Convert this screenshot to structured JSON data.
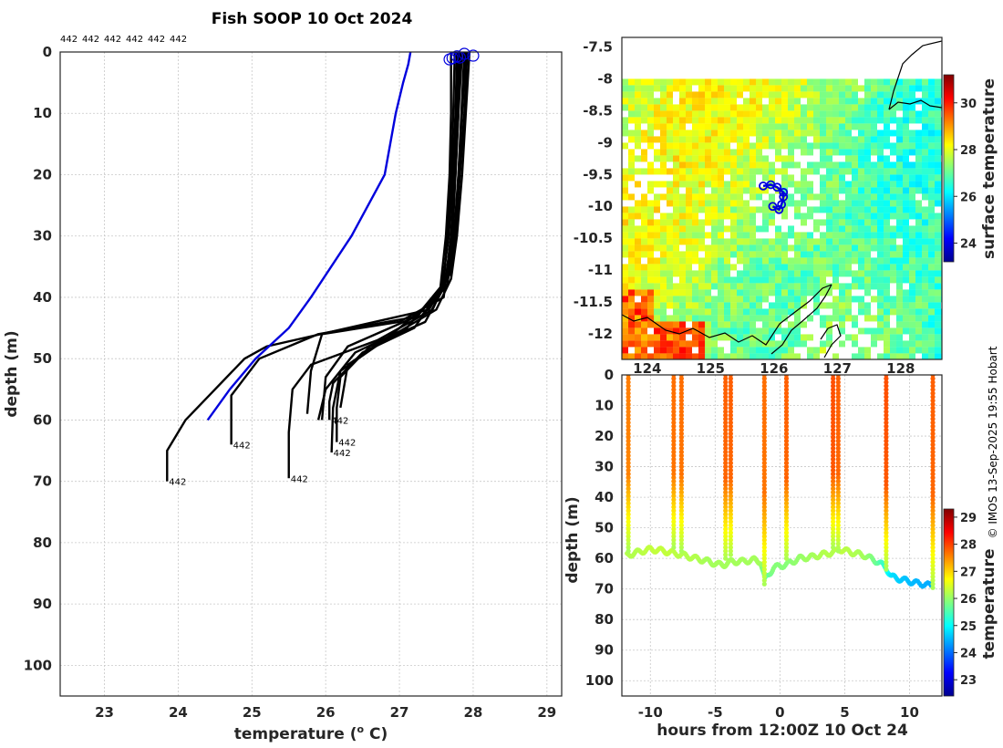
{
  "title": "Fish SOOP 10 Oct 2024",
  "credit": "© IMOS 13-Sep-2025 19:55 Hobart",
  "chart_data": [
    {
      "type": "line",
      "name": "temperature-profiles",
      "xlabel": "temperature (",
      "xlabel_sup": "o",
      "xlabel_end": " C)",
      "ylabel": "depth (m)",
      "xlim": [
        22.4,
        29.2
      ],
      "ylim": [
        0,
        105
      ],
      "y_reversed": true,
      "xticks": [
        "23",
        "24",
        "25",
        "26",
        "27",
        "28",
        "29"
      ],
      "yticks": [
        "0",
        "10",
        "20",
        "30",
        "40",
        "50",
        "60",
        "70",
        "80",
        "90",
        "100"
      ],
      "top_labels": [
        "442",
        "442",
        "442",
        "442",
        "442",
        "442"
      ],
      "end_labels": [
        {
          "text": "442",
          "x": 23.85,
          "y": 70
        },
        {
          "text": "442",
          "x": 24.72,
          "y": 64
        },
        {
          "text": "442",
          "x": 25.5,
          "y": 69.5
        },
        {
          "text": "442",
          "x": 26.08,
          "y": 65.3
        },
        {
          "text": "442",
          "x": 26.15,
          "y": 63.6
        },
        {
          "text": "442",
          "x": 26.05,
          "y": 60
        }
      ],
      "reference_profile": {
        "name": "climatology",
        "color": "#0000dd",
        "x": [
          27.15,
          27.12,
          27.05,
          26.95,
          26.8,
          26.35,
          25.8,
          25.5,
          25.05,
          24.7,
          24.4
        ],
        "y": [
          0,
          2,
          5,
          10,
          20,
          30,
          40,
          45,
          50,
          55,
          60
        ]
      },
      "series": [
        {
          "name": "profile-1",
          "x": [
            27.75,
            27.73,
            27.7,
            27.65,
            27.6,
            27.4,
            26.3,
            25.2,
            24.9,
            24.5,
            24.1,
            23.85,
            23.85
          ],
          "y": [
            0,
            10,
            20,
            30,
            38,
            42,
            45,
            48,
            50,
            55,
            60,
            65,
            70
          ]
        },
        {
          "name": "profile-2",
          "x": [
            27.82,
            27.8,
            27.76,
            27.72,
            27.65,
            27.3,
            25.9,
            25.1,
            24.72,
            24.72
          ],
          "y": [
            0,
            10,
            20,
            30,
            38,
            43,
            46,
            50,
            56,
            64
          ]
        },
        {
          "name": "profile-3",
          "x": [
            27.9,
            27.85,
            27.8,
            27.75,
            27.68,
            27.45,
            26.7,
            25.8,
            25.55,
            25.5,
            25.5
          ],
          "y": [
            0,
            10,
            20,
            30,
            36,
            42,
            47,
            51,
            55,
            62,
            69.5
          ]
        },
        {
          "name": "profile-4",
          "x": [
            27.95,
            27.9,
            27.85,
            27.78,
            27.7,
            27.5,
            26.8,
            26.2,
            26.1,
            26.08
          ],
          "y": [
            0,
            10,
            20,
            30,
            37,
            42,
            47,
            52,
            58,
            65.3
          ]
        },
        {
          "name": "profile-5",
          "x": [
            27.85,
            27.8,
            27.76,
            27.7,
            27.62,
            27.35,
            26.6,
            26.2,
            26.15,
            26.15
          ],
          "y": [
            0,
            10,
            20,
            30,
            38,
            44,
            48,
            53,
            58,
            63.6
          ]
        },
        {
          "name": "profile-6",
          "x": [
            27.7,
            27.7,
            27.68,
            27.63,
            27.55,
            27.2,
            26.5,
            26.1,
            26.05,
            26.05
          ],
          "y": [
            0,
            10,
            20,
            30,
            39,
            45,
            49,
            54,
            57,
            60
          ]
        },
        {
          "name": "profile-7",
          "x": [
            27.8,
            27.78,
            27.74,
            27.7,
            27.6,
            27.0,
            25.95,
            25.8,
            25.75
          ],
          "y": [
            0,
            10,
            20,
            30,
            40,
            44,
            46,
            52,
            59
          ]
        },
        {
          "name": "profile-8",
          "x": [
            27.88,
            27.84,
            27.8,
            27.74,
            27.66,
            27.25,
            26.3,
            26.0,
            25.95
          ],
          "y": [
            0,
            10,
            20,
            30,
            37,
            43,
            48,
            53,
            60
          ]
        },
        {
          "name": "profile-9",
          "x": [
            27.78,
            27.76,
            27.72,
            27.67,
            27.58,
            27.1,
            26.4,
            26.0,
            25.9
          ],
          "y": [
            0,
            10,
            20,
            30,
            38,
            45,
            49,
            55,
            60
          ]
        },
        {
          "name": "profile-10",
          "x": [
            27.92,
            27.88,
            27.82,
            27.76,
            27.7,
            27.4,
            26.9,
            26.3,
            26.2
          ],
          "y": [
            0,
            10,
            20,
            30,
            36,
            41,
            46,
            51,
            58
          ]
        }
      ],
      "surface_markers": [
        {
          "x": 27.68,
          "y": 1.2
        },
        {
          "x": 27.72,
          "y": 1.0
        },
        {
          "x": 27.78,
          "y": 0.7
        },
        {
          "x": 27.88,
          "y": 0.3
        },
        {
          "x": 28.0,
          "y": 0.6
        },
        {
          "x": 27.82,
          "y": 0.9
        }
      ]
    },
    {
      "type": "heatmap",
      "name": "surface-temperature-map",
      "xlim": [
        123.6,
        128.65
      ],
      "ylim": [
        -12.4,
        -7.35
      ],
      "xticks": [
        "124",
        "125",
        "126",
        "127",
        "128"
      ],
      "yticks": [
        "-7.5",
        "-8",
        "-8.5",
        "-9",
        "-9.5",
        "-10",
        "-10.5",
        "-11",
        "-11.5",
        "-12"
      ],
      "colorbar_label": "surface temperature",
      "colorbar_range": [
        23.2,
        31.2
      ],
      "colorbar_ticks": [
        "24",
        "26",
        "28",
        "30"
      ],
      "track": {
        "lon": [
          125.83,
          125.95,
          126.05,
          126.15,
          126.15,
          126.12,
          126.08,
          125.98
        ],
        "lat": [
          -9.68,
          -9.66,
          -9.7,
          -9.78,
          -9.85,
          -9.97,
          -10.05,
          -10.0
        ]
      }
    },
    {
      "type": "scatter",
      "name": "depth-time-section",
      "xlabel": "hours from 12:00Z 10 Oct 24",
      "ylabel": "depth (m)",
      "xlim": [
        -12.2,
        12.5
      ],
      "ylim": [
        0,
        105
      ],
      "y_reversed": true,
      "xticks": [
        "-10",
        "-5",
        "0",
        "5",
        "10"
      ],
      "yticks": [
        "0",
        "10",
        "20",
        "30",
        "40",
        "50",
        "60",
        "70",
        "80",
        "90",
        "100"
      ],
      "colorbar_label": "temperature",
      "colorbar_range": [
        22.4,
        29.3
      ],
      "colorbar_ticks": [
        "23",
        "24",
        "25",
        "26",
        "27",
        "28",
        "29"
      ],
      "casts": [
        {
          "hour": -11.7,
          "bottom": 58,
          "surf_temp": 27.6
        },
        {
          "hour": -8.2,
          "bottom": 57,
          "surf_temp": 27.7
        },
        {
          "hour": -7.6,
          "bottom": 58,
          "surf_temp": 27.7
        },
        {
          "hour": -4.2,
          "bottom": 61,
          "surf_temp": 27.8
        },
        {
          "hour": -3.8,
          "bottom": 60,
          "surf_temp": 27.8
        },
        {
          "hour": -1.2,
          "bottom": 69,
          "surf_temp": 27.7
        },
        {
          "hour": 0.5,
          "bottom": 61,
          "surf_temp": 27.8
        },
        {
          "hour": 4.1,
          "bottom": 57,
          "surf_temp": 27.9
        },
        {
          "hour": 4.5,
          "bottom": 58,
          "surf_temp": 27.8
        },
        {
          "hour": 8.2,
          "bottom": 64,
          "surf_temp": 27.9
        },
        {
          "hour": 11.8,
          "bottom": 70,
          "surf_temp": 27.8
        }
      ],
      "bottom_track": {
        "hour": [
          -11.8,
          -11,
          -10,
          -9,
          -8.5,
          -7.4,
          -6.5,
          -5.5,
          -4.8,
          -4.3,
          -3.7,
          -3,
          -2,
          -1.5,
          -1.15,
          -0.5,
          0.5,
          1.5,
          2.5,
          3.5,
          4.2,
          4.6,
          5.5,
          6.5,
          7.5,
          8.2,
          8.6,
          9.5,
          10.5,
          11.8
        ],
        "depth": [
          59,
          58,
          57,
          57.5,
          58,
          59,
          60,
          61,
          62,
          62,
          61,
          61,
          60.5,
          61,
          67,
          63,
          62,
          60,
          59.5,
          58.5,
          58,
          57,
          58,
          59,
          61,
          63,
          66,
          67,
          68,
          69
        ],
        "temp": [
          26.2,
          26.2,
          26.3,
          26.3,
          26.3,
          26.2,
          26.2,
          26.1,
          26.1,
          26.1,
          26.1,
          26.1,
          26.1,
          26.1,
          25.5,
          25.9,
          25.9,
          26.0,
          26.1,
          26.2,
          26.2,
          26.3,
          26.2,
          26.1,
          25.7,
          25.2,
          24.8,
          24.6,
          24.5,
          24.4
        ]
      }
    }
  ]
}
